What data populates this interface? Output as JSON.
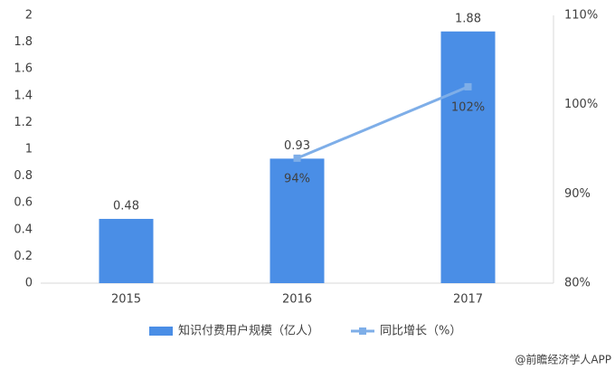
{
  "chart_data": {
    "type": "bar_line",
    "categories": [
      "2015",
      "2016",
      "2017"
    ],
    "series": [
      {
        "name": "知识付费用户规模（亿人）",
        "type": "bar",
        "color": "#4a8ee6",
        "values": [
          0.48,
          0.93,
          1.88
        ]
      },
      {
        "name": "同比增长（%）",
        "type": "line",
        "axis": "y2",
        "color": "#7eaee8",
        "values": [
          null,
          94,
          102
        ],
        "value_labels": [
          null,
          "94%",
          "102%"
        ]
      }
    ],
    "ylim": [
      0,
      2
    ],
    "yticks": [
      0,
      0.2,
      0.4,
      0.6,
      0.8,
      1,
      1.2,
      1.4,
      1.6,
      1.8,
      2
    ],
    "y2lim": [
      80,
      110
    ],
    "y2ticks": [
      {
        "value": 80,
        "label": "80%"
      },
      {
        "value": 90,
        "label": "90%"
      },
      {
        "value": 100,
        "label": "100%"
      },
      {
        "value": 110,
        "label": "110%"
      }
    ],
    "grid": false,
    "legend": "bottom",
    "source": "@前瞻经济学人APP"
  }
}
